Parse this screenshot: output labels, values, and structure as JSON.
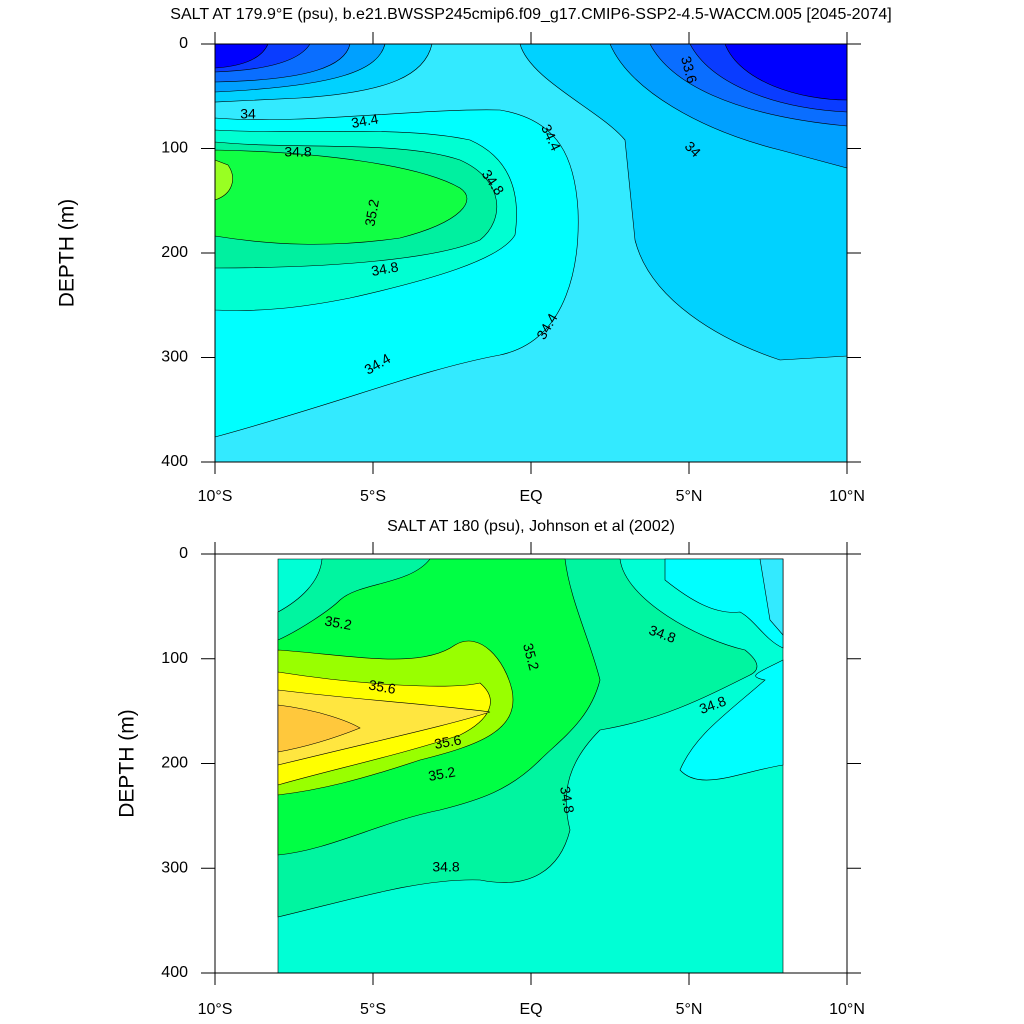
{
  "chart_data": [
    {
      "type": "contour",
      "title": "SALT AT 179.9°E (psu), b.e21.BWSSP245cmip6.f09_g17.CMIP6-SSP2-4.5-WACCM.005 [2045-2074]",
      "y_label": "DEPTH (m)",
      "xlim": [
        -10,
        10
      ],
      "xticks": [
        {
          "value": -10,
          "label": "10°S"
        },
        {
          "value": -5,
          "label": "5°S"
        },
        {
          "value": 0,
          "label": "EQ"
        },
        {
          "value": 5,
          "label": "5°N"
        },
        {
          "value": 10,
          "label": "10°N"
        }
      ],
      "ylim": [
        400,
        0
      ],
      "yticks": [
        0,
        100,
        200,
        300,
        400
      ],
      "levels": [
        33.2,
        33.4,
        33.6,
        33.8,
        34.0,
        34.2,
        34.4,
        34.6,
        34.8,
        35.0,
        35.2
      ],
      "colors": [
        "#0000ff",
        "#0a3cff",
        "#0a6eff",
        "#00a0ff",
        "#00d2ff",
        "#33eaff",
        "#00ffff",
        "#00ffd2",
        "#00f0a0",
        "#11ff44",
        "#99ff22"
      ],
      "contour_labels": [
        34,
        34.4,
        34.8,
        35.2,
        34.8,
        34.4,
        33.6,
        34,
        34.8,
        34.4,
        34.4
      ]
    },
    {
      "type": "contour",
      "title": "SALT AT 180 (psu), Johnson et al (2002)",
      "y_label": "DEPTH (m)",
      "xlim": [
        -10,
        10
      ],
      "xticks": [
        {
          "value": -10,
          "label": "10°S"
        },
        {
          "value": -5,
          "label": "5°S"
        },
        {
          "value": 0,
          "label": "EQ"
        },
        {
          "value": 5,
          "label": "5°N"
        },
        {
          "value": 10,
          "label": "10°N"
        }
      ],
      "ylim": [
        400,
        0
      ],
      "yticks": [
        0,
        100,
        200,
        300,
        400
      ],
      "levels": [
        34.2,
        34.4,
        34.6,
        34.8,
        35.0,
        35.2,
        35.4,
        35.6,
        35.8
      ],
      "colors": [
        "#33eaff",
        "#00ffff",
        "#00ffd5",
        "#00f5a0",
        "#00ff44",
        "#99ff00",
        "#ffff00",
        "#ffe640",
        "#ffc83c"
      ],
      "contour_labels": [
        35.2,
        35.6,
        35.6,
        35.2,
        35.2,
        34.8,
        34.8,
        34.8,
        34.8
      ]
    }
  ]
}
